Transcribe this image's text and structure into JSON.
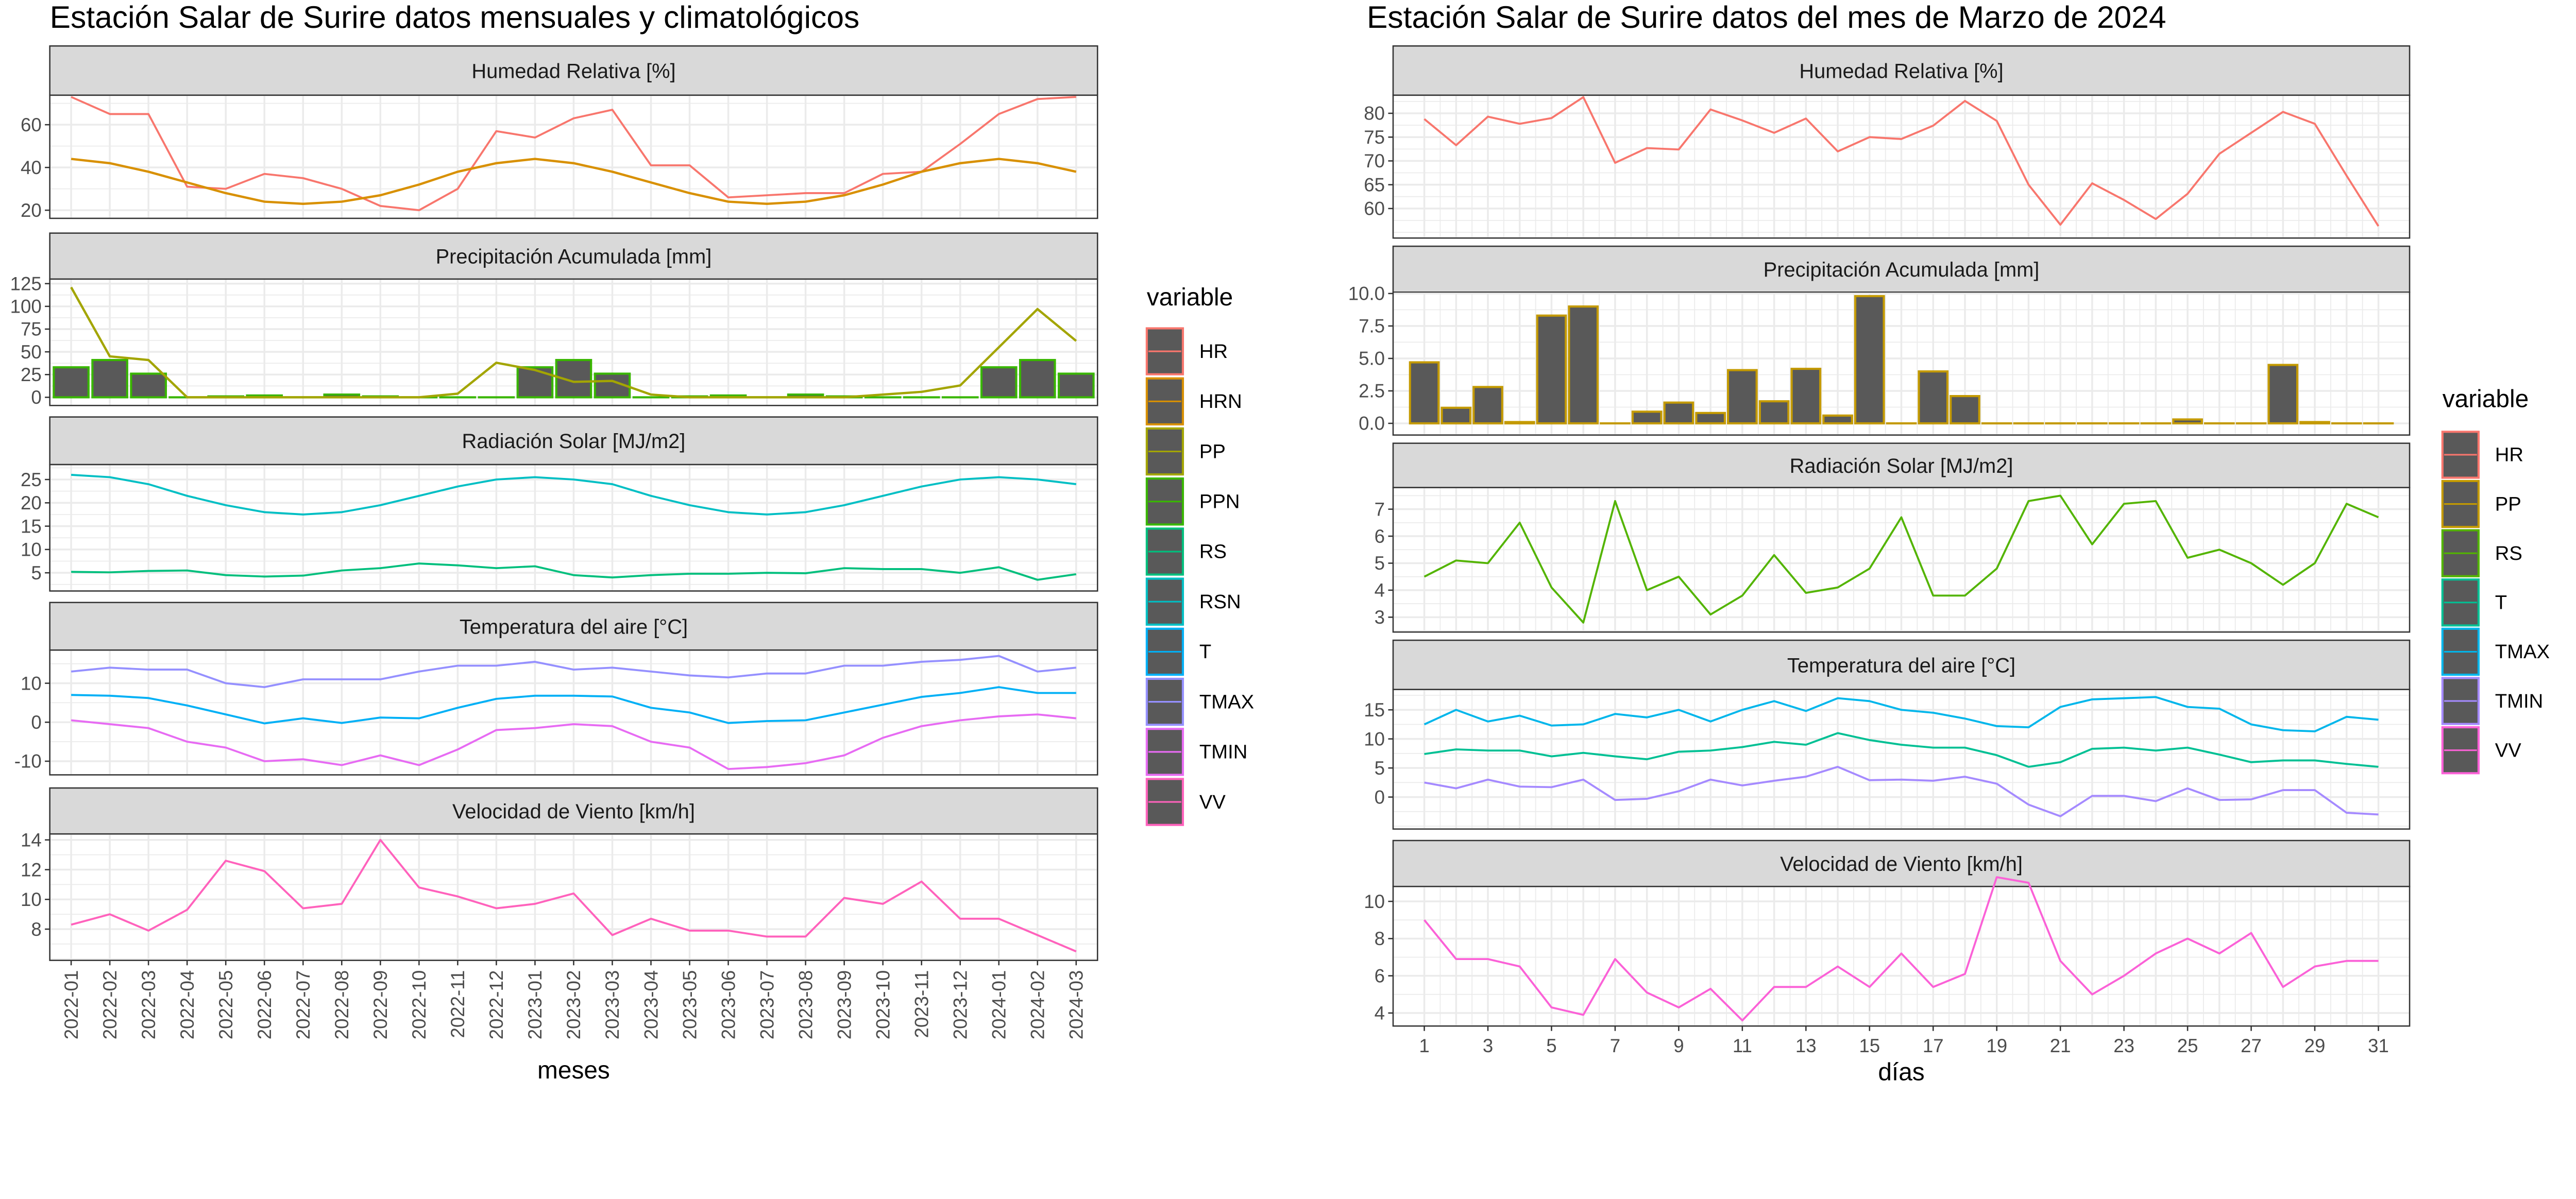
{
  "chart_data": [
    {
      "type": "line+bar",
      "title": "Estación Salar de Surire datos mensuales y climatológicos",
      "xlabel": "meses",
      "x": [
        "2022-01",
        "2022-02",
        "2022-03",
        "2022-04",
        "2022-05",
        "2022-06",
        "2022-07",
        "2022-08",
        "2022-09",
        "2022-10",
        "2022-11",
        "2022-12",
        "2023-01",
        "2023-02",
        "2023-03",
        "2023-04",
        "2023-05",
        "2023-06",
        "2023-07",
        "2023-08",
        "2023-09",
        "2023-10",
        "2023-11",
        "2023-12",
        "2024-01",
        "2024-02",
        "2024-03"
      ],
      "legend": {
        "title": "variable",
        "placement": "right",
        "entries": [
          "HR",
          "HRN",
          "PP",
          "PPN",
          "RS",
          "RSN",
          "T",
          "TMAX",
          "TMIN",
          "VV"
        ]
      },
      "colors": {
        "HR": "#F8766D",
        "HRN": "#D89000",
        "PP": "#A3A500",
        "PPN": "#39B600",
        "RS": "#00BF7D",
        "RSN": "#00BFC4",
        "T": "#00B0F6",
        "TMAX": "#9590FF",
        "TMIN": "#E76BF3",
        "VV": "#FF62BC"
      },
      "panels": [
        {
          "title": "Humedad Relativa [%]",
          "ylim": [
            16.2,
            73.8
          ],
          "yticks": [
            20,
            40,
            60
          ],
          "series": [
            {
              "name": "HR",
              "kind": "line",
              "values": [
                73,
                65,
                65,
                31,
                30,
                37,
                35,
                30,
                22,
                20,
                30,
                57,
                54,
                63,
                67,
                41,
                41,
                26,
                27,
                28,
                28,
                37,
                38,
                51,
                65,
                72,
                73
              ]
            },
            {
              "name": "HRN",
              "kind": "line",
              "values": [
                44,
                42,
                38,
                33,
                28,
                24,
                23,
                24,
                27,
                32,
                38,
                42,
                44,
                42,
                38,
                33,
                28,
                24,
                23,
                24,
                27,
                32,
                38,
                42,
                44,
                42,
                38
              ]
            }
          ]
        },
        {
          "title": "Precipitación Acumulada [mm]",
          "ylim": [
            -9,
            130
          ],
          "yticks": [
            0,
            25,
            50,
            75,
            100,
            125
          ],
          "series": [
            {
              "name": "PPN",
              "kind": "bar",
              "values": [
                33,
                41,
                26,
                0,
                1,
                2,
                0,
                3,
                1,
                0,
                0,
                0,
                33,
                41,
                26,
                0,
                1,
                2,
                0,
                3,
                1,
                0,
                0,
                0,
                33,
                41,
                26
              ]
            },
            {
              "name": "PP",
              "kind": "line",
              "values": [
                121,
                45,
                41,
                0,
                0,
                0,
                0,
                0,
                0,
                0,
                4,
                38,
                30,
                17,
                18,
                3,
                0,
                0,
                0,
                0,
                0,
                3,
                6,
                13,
                55,
                97,
                62
              ]
            }
          ]
        },
        {
          "title": "Radiación Solar [MJ/m2]",
          "ylim": [
            1.1,
            28.2
          ],
          "yticks": [
            5,
            10,
            15,
            20,
            25
          ],
          "series": [
            {
              "name": "RSN",
              "kind": "line",
              "values": [
                26,
                25.5,
                24,
                21.5,
                19.5,
                18,
                17.5,
                18,
                19.5,
                21.5,
                23.5,
                25,
                25.5,
                25,
                24,
                21.5,
                19.5,
                18,
                17.5,
                18,
                19.5,
                21.5,
                23.5,
                25,
                25.5,
                25,
                24
              ]
            },
            {
              "name": "RS",
              "kind": "line",
              "values": [
                5.2,
                5.1,
                5.4,
                5.5,
                4.5,
                4.2,
                4.4,
                5.5,
                6,
                7,
                6.6,
                6,
                6.4,
                4.5,
                4,
                4.5,
                4.8,
                4.8,
                5,
                4.9,
                6,
                5.8,
                5.8,
                5,
                6.2,
                3.5,
                4.7
              ]
            }
          ]
        },
        {
          "title": "Temperatura del aire [°C]",
          "ylim": [
            -13.5,
            18.5
          ],
          "yticks": [
            -10,
            0,
            10
          ],
          "series": [
            {
              "name": "TMAX",
              "kind": "line",
              "values": [
                13,
                14,
                13.5,
                13.5,
                10,
                9,
                11,
                11,
                11,
                13,
                14.5,
                14.5,
                15.5,
                13.5,
                14,
                13,
                12,
                11.5,
                12.5,
                12.5,
                14.5,
                14.5,
                15.5,
                16,
                17,
                13,
                14
              ]
            },
            {
              "name": "T",
              "kind": "line",
              "values": [
                7,
                6.8,
                6.2,
                4.3,
                2,
                -0.3,
                1,
                -0.2,
                1.2,
                1,
                3.7,
                6,
                6.8,
                6.8,
                6.6,
                3.7,
                2.5,
                -0.2,
                0.3,
                0.5,
                2.5,
                4.5,
                6.5,
                7.5,
                9,
                7.5,
                7.5
              ]
            },
            {
              "name": "TMIN",
              "kind": "line",
              "values": [
                0.5,
                -0.5,
                -1.5,
                -5,
                -6.5,
                -10,
                -9.5,
                -11,
                -8.5,
                -11,
                -7,
                -2,
                -1.5,
                -0.5,
                -1,
                -5,
                -6.5,
                -12,
                -11.5,
                -10.5,
                -8.5,
                -4,
                -1,
                0.5,
                1.5,
                2,
                1
              ]
            }
          ]
        },
        {
          "title": "Velocidad de Viento [km/h]",
          "ylim": [
            5.9,
            14.4
          ],
          "yticks": [
            8,
            10,
            12,
            14
          ],
          "series": [
            {
              "name": "VV",
              "kind": "line",
              "values": [
                8.3,
                9,
                7.9,
                9.3,
                12.6,
                11.9,
                9.4,
                9.7,
                14,
                10.8,
                10.2,
                9.4,
                9.7,
                10.4,
                7.6,
                8.7,
                7.9,
                7.9,
                7.5,
                7.5,
                10.1,
                9.7,
                11.2,
                8.7,
                8.7,
                7.6,
                6.5
              ]
            }
          ]
        }
      ]
    },
    {
      "type": "line+bar",
      "title": "Estación Salar de Surire datos del mes de Marzo de 2024",
      "xlabel": "días",
      "x": [
        1,
        2,
        3,
        4,
        5,
        6,
        7,
        8,
        9,
        10,
        11,
        12,
        13,
        14,
        15,
        16,
        17,
        18,
        19,
        20,
        21,
        22,
        23,
        24,
        25,
        26,
        27,
        28,
        29,
        30,
        31
      ],
      "xticks": [
        "1",
        "3",
        "5",
        "7",
        "9",
        "11",
        "13",
        "15",
        "17",
        "19",
        "21",
        "23",
        "25",
        "27",
        "29",
        "31"
      ],
      "legend": {
        "title": "variable",
        "placement": "right",
        "entries": [
          "HR",
          "PP",
          "RS",
          "T",
          "TMAX",
          "TMIN",
          "VV"
        ]
      },
      "colors": {
        "HR": "#F8766D",
        "PP": "#C49A00",
        "RS": "#53B400",
        "T": "#00C094",
        "TMAX": "#00B6EB",
        "TMIN": "#A58AFF",
        "VV": "#FB61D7"
      },
      "panels": [
        {
          "title": "Humedad Relativa [%]",
          "ylim": [
            53.8,
            83.8
          ],
          "yticks": [
            60,
            65,
            70,
            75,
            80
          ],
          "series": [
            {
              "name": "HR",
              "kind": "line",
              "values": [
                78.8,
                73.3,
                79.3,
                77.8,
                79,
                83.4,
                69.6,
                72.7,
                72.4,
                80.8,
                78.5,
                75.9,
                78.9,
                72,
                75,
                74.6,
                77.4,
                82.6,
                78.4,
                65,
                56.6,
                65.3,
                61.8,
                57.8,
                63.1,
                71.5,
                75.9,
                80.3,
                77.8,
                66.9,
                56.3
              ]
            }
          ]
        },
        {
          "title": "Precipitación Acumulada [mm]",
          "ylim": [
            -0.9,
            10.1
          ],
          "yticks": [
            "0.0",
            "2.5",
            "5.0",
            "7.5",
            "10.0"
          ],
          "series": [
            {
              "name": "PP",
              "kind": "bar",
              "values": [
                4.7,
                1.2,
                2.8,
                0.1,
                8.3,
                9,
                0,
                0.9,
                1.6,
                0.8,
                4.1,
                1.7,
                4.2,
                0.6,
                9.8,
                0,
                4,
                2.1,
                0,
                0,
                0,
                0,
                0,
                0,
                0.3,
                0,
                0,
                4.5,
                0.1,
                0,
                0
              ]
            }
          ]
        },
        {
          "title": "Radiación Solar [MJ/m2]",
          "ylim": [
            2.45,
            7.8
          ],
          "yticks": [
            3,
            4,
            5,
            6,
            7
          ],
          "series": [
            {
              "name": "RS",
              "kind": "line",
              "values": [
                4.5,
                5.1,
                5,
                6.5,
                4.1,
                2.8,
                7.3,
                4,
                4.5,
                3.1,
                3.8,
                5.3,
                3.9,
                4.1,
                4.8,
                6.7,
                3.8,
                3.8,
                4.8,
                7.3,
                7.5,
                5.7,
                7.2,
                7.3,
                5.2,
                5.5,
                5,
                4.2,
                5,
                7.2,
                6.7
              ]
            }
          ]
        },
        {
          "title": "Temperatura del aire [°C]",
          "ylim": [
            -5.5,
            18.5
          ],
          "yticks": [
            0,
            5,
            10,
            15
          ],
          "series": [
            {
              "name": "TMAX",
              "kind": "line",
              "values": [
                12.5,
                15,
                13,
                14,
                12.3,
                12.5,
                14.3,
                13.7,
                15,
                13,
                15,
                16.5,
                14.8,
                17,
                16.5,
                15,
                14.5,
                13.5,
                12.2,
                12,
                15.5,
                16.8,
                17,
                17.2,
                15.5,
                15.2,
                12.5,
                11.5,
                11.3,
                13.8,
                13.3
              ]
            },
            {
              "name": "T",
              "kind": "line",
              "values": [
                7.4,
                8.2,
                8,
                8,
                7,
                7.6,
                7,
                6.5,
                7.8,
                8,
                8.6,
                9.5,
                9,
                11,
                9.8,
                9,
                8.5,
                8.5,
                7.2,
                5.2,
                6,
                8.3,
                8.5,
                8,
                8.5,
                7.3,
                6,
                6.3,
                6.3,
                5.7,
                5.2
              ]
            },
            {
              "name": "TMIN",
              "kind": "line",
              "values": [
                2.5,
                1.5,
                3,
                1.8,
                1.7,
                3,
                -0.5,
                -0.3,
                1,
                3,
                2,
                2.8,
                3.5,
                5.2,
                2.9,
                3,
                2.8,
                3.5,
                2.3,
                -1.3,
                -3.3,
                0.2,
                0.2,
                -0.7,
                1.5,
                -0.5,
                -0.4,
                1.2,
                1.2,
                -2.7,
                -3
              ]
            }
          ]
        },
        {
          "title": "Velocidad de Viento [km/h]",
          "ylim": [
            3.3,
            10.8
          ],
          "yticks": [
            4,
            6,
            8,
            10
          ],
          "series": [
            {
              "name": "VV",
              "kind": "line",
              "values": [
                9,
                6.9,
                6.9,
                6.5,
                4.3,
                3.9,
                6.9,
                5.1,
                4.3,
                5.3,
                3.6,
                5.4,
                5.4,
                6.5,
                5.4,
                7.2,
                5.4,
                6.1,
                11.3,
                11,
                6.8,
                5,
                6,
                7.2,
                8,
                7.2,
                8.3,
                5.4,
                6.5,
                6.8,
                6.8
              ]
            }
          ]
        }
      ]
    }
  ]
}
